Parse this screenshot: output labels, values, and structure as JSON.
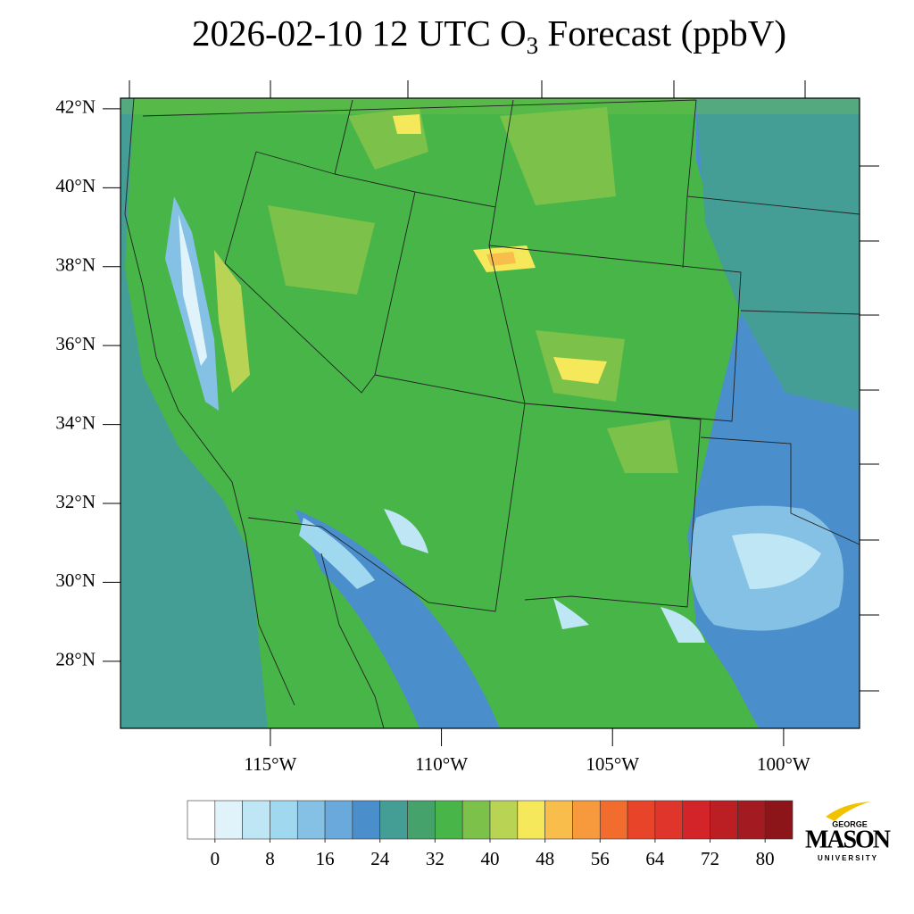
{
  "map": {
    "title": {
      "main": "2026-02-10 12 UTC O",
      "sub": "3",
      "rest": " Forecast (ppbV)"
    },
    "xlim": [
      -119.38,
      -97.78
    ],
    "ylim": [
      26.3,
      42.27
    ],
    "xticks": [
      {
        "value": -115,
        "label": "115°W"
      },
      {
        "value": -110,
        "label": "110°W"
      },
      {
        "value": -105,
        "label": "105°W"
      },
      {
        "value": -100,
        "label": "100°W"
      }
    ],
    "yticks": [
      {
        "value": 42,
        "label": "42°N"
      },
      {
        "value": 40,
        "label": "40°N"
      },
      {
        "value": 38,
        "label": "38°N"
      },
      {
        "value": 36,
        "label": "36°N"
      },
      {
        "value": 34,
        "label": "34°N"
      },
      {
        "value": 32,
        "label": "32°N"
      },
      {
        "value": 30,
        "label": "30°N"
      },
      {
        "value": 28,
        "label": "28°N"
      }
    ]
  },
  "colorbar": {
    "colors": [
      "#ffffff",
      "#e0f3fa",
      "#bfe6f5",
      "#a0d8f0",
      "#85c1e5",
      "#69a9dc",
      "#4a8fcb",
      "#449e96",
      "#44a26a",
      "#48b548",
      "#7cc24a",
      "#b9d454",
      "#f5e85a",
      "#f8bd4b",
      "#f69a3d",
      "#f26c2e",
      "#e8442a",
      "#e0352b",
      "#d32529",
      "#bb1f24",
      "#a31b20",
      "#8b1519"
    ],
    "ticks": [
      0,
      8,
      16,
      24,
      32,
      40,
      48,
      56,
      64,
      72,
      80
    ]
  },
  "logo": {
    "top": "GEORGE",
    "name": "MASON",
    "bottom": "UNIVERSITY"
  }
}
